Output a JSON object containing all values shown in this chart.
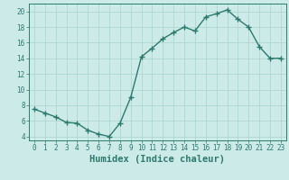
{
  "x": [
    0,
    1,
    2,
    3,
    4,
    5,
    6,
    7,
    8,
    9,
    10,
    11,
    12,
    13,
    14,
    15,
    16,
    17,
    18,
    19,
    20,
    21,
    22,
    23
  ],
  "y": [
    7.5,
    7.0,
    6.5,
    5.8,
    5.7,
    4.8,
    4.3,
    4.0,
    5.7,
    9.0,
    14.2,
    15.3,
    16.5,
    17.3,
    18.0,
    17.5,
    19.3,
    19.7,
    20.2,
    19.0,
    18.0,
    15.5,
    14.0,
    14.0
  ],
  "line_color": "#2d7a6e",
  "marker": "+",
  "marker_size": 5,
  "bg_color": "#cceae7",
  "grid_color": "#aad4d0",
  "xlabel": "Humidex (Indice chaleur)",
  "ylabel_ticks": [
    4,
    6,
    8,
    10,
    12,
    14,
    16,
    18,
    20
  ],
  "xlim": [
    -0.5,
    23.5
  ],
  "ylim": [
    3.5,
    21.0
  ],
  "tick_color": "#2d7a6e",
  "tick_fontsize": 5.5,
  "label_fontsize": 7.5,
  "linewidth": 1.0
}
